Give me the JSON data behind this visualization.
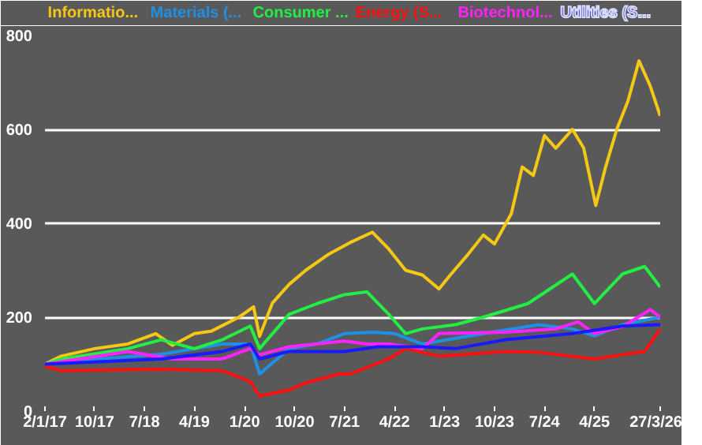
{
  "chart_data": {
    "type": "line",
    "grid": "y",
    "ylim": [
      0,
      800
    ],
    "yticks": [
      0,
      200,
      400,
      600,
      800
    ],
    "xlim": [
      "2017-01-02",
      "2026-03-27"
    ],
    "xticks": [
      {
        "value": "2017-01-02",
        "label": "2/1/17"
      },
      {
        "value": "2017-10-01",
        "label": "10/17"
      },
      {
        "value": "2018-07-01",
        "label": "7/18"
      },
      {
        "value": "2019-04-01",
        "label": "4/19"
      },
      {
        "value": "2020-01-01",
        "label": "1/20"
      },
      {
        "value": "2020-10-01",
        "label": "10/20"
      },
      {
        "value": "2021-07-01",
        "label": "7/21"
      },
      {
        "value": "2022-04-01",
        "label": "4/22"
      },
      {
        "value": "2023-01-01",
        "label": "1/23"
      },
      {
        "value": "2023-10-01",
        "label": "10/23"
      },
      {
        "value": "2024-07-01",
        "label": "7/24"
      },
      {
        "value": "2025-04-01",
        "label": "4/25"
      },
      {
        "value": "2026-03-27",
        "label": "27/3/26"
      }
    ],
    "series": [
      {
        "name": "Informatio...",
        "color": "#f5c816",
        "x": [
          "2017-01-02",
          "2017-04",
          "2017-10",
          "2018-04",
          "2018-09",
          "2018-12",
          "2019-04",
          "2019-07",
          "2019-12",
          "2020-02-19",
          "2020-03-23",
          "2020-06",
          "2020-09",
          "2020-12",
          "2021-04",
          "2021-08",
          "2021-12",
          "2022-03",
          "2022-06",
          "2022-09",
          "2022-12",
          "2023-02",
          "2023-05",
          "2023-08",
          "2023-10",
          "2024-01",
          "2024-03",
          "2024-05",
          "2024-07",
          "2024-09",
          "2024-12",
          "2025-02",
          "2025-04-08",
          "2025-06",
          "2025-08",
          "2025-10",
          "2025-12",
          "2026-02",
          "2026-03-27"
        ],
        "values": [
          100,
          117,
          133,
          143,
          165,
          140,
          165,
          170,
          200,
          222,
          159,
          230,
          270,
          300,
          333,
          359,
          381,
          345,
          300,
          290,
          260,
          290,
          330,
          375,
          356,
          420,
          520,
          502,
          587,
          560,
          600,
          560,
          438,
          520,
          600,
          660,
          746,
          692,
          629
        ]
      },
      {
        "name": "Materials (...",
        "color": "#1e90e6",
        "x": [
          "2017-01-02",
          "2017-04",
          "2018-10",
          "2019-09",
          "2020-02",
          "2020-03-23",
          "2020-09",
          "2021-02",
          "2021-07",
          "2021-12",
          "2022-04",
          "2022-09",
          "2023-08",
          "2024-06",
          "2024-12",
          "2025-04",
          "2025-09",
          "2026-03-27"
        ],
        "values": [
          100,
          105,
          121,
          143,
          143,
          79,
          133,
          143,
          165,
          168,
          165,
          143,
          165,
          184,
          175,
          160,
          184,
          200
        ]
      },
      {
        "name": "Consumer ...",
        "color": "#22ee44",
        "x": [
          "2017-01-02",
          "2017-04",
          "2018-04",
          "2018-10",
          "2019-04",
          "2019-09",
          "2020-02",
          "2020-03-23",
          "2020-09",
          "2021-02",
          "2021-07",
          "2021-11",
          "2022-03",
          "2022-06",
          "2022-09",
          "2023-03",
          "2023-08",
          "2024-04",
          "2024-12",
          "2025-04",
          "2025-09",
          "2026-01",
          "2026-03-27"
        ],
        "values": [
          100,
          111,
          133,
          152,
          133,
          152,
          181,
          133,
          206,
          229,
          248,
          254,
          206,
          165,
          175,
          184,
          200,
          229,
          292,
          229,
          292,
          308,
          264
        ]
      },
      {
        "name": "Energy (S...",
        "color": "#ff1010",
        "x": [
          "2017-01-02",
          "2017-04",
          "2018-10",
          "2019-09",
          "2020-02",
          "2020-03-23",
          "2020-09",
          "2020-12",
          "2021-06",
          "2021-08",
          "2022-03",
          "2022-06",
          "2022-12",
          "2023-12",
          "2024-06",
          "2025-04",
          "2025-09",
          "2026-01",
          "2026-03-27"
        ],
        "values": [
          95,
          86,
          89,
          86,
          63,
          32,
          45,
          60,
          79,
          79,
          111,
          133,
          117,
          127,
          125,
          111,
          120,
          127,
          175
        ]
      },
      {
        "name": "Biotechnol...",
        "color": "#ff22ff",
        "x": [
          "2017-01-02",
          "2017-04",
          "2018-04",
          "2018-12",
          "2019-09",
          "2020-02",
          "2020-03-23",
          "2020-09",
          "2021-07",
          "2021-11",
          "2022-03",
          "2022-09",
          "2022-12",
          "2023-12",
          "2024-09",
          "2025-01",
          "2025-04",
          "2025-09",
          "2026-02",
          "2026-03-27"
        ],
        "values": [
          100,
          105,
          127,
          111,
          111,
          133,
          120,
          137,
          149,
          143,
          143,
          133,
          165,
          168,
          175,
          190,
          165,
          180,
          216,
          200
        ]
      },
      {
        "name": "Utilities (S...",
        "color": "#1a1aff",
        "x": [
          "2017-01-02",
          "2018-10",
          "2019-09",
          "2020-02",
          "2020-03-23",
          "2020-09",
          "2021-07",
          "2022-01",
          "2022-09",
          "2023-03",
          "2023-12",
          "2024-12",
          "2025-09",
          "2026-03-27"
        ],
        "values": [
          100,
          111,
          127,
          143,
          111,
          127,
          127,
          137,
          137,
          133,
          152,
          165,
          181,
          184
        ]
      }
    ]
  }
}
